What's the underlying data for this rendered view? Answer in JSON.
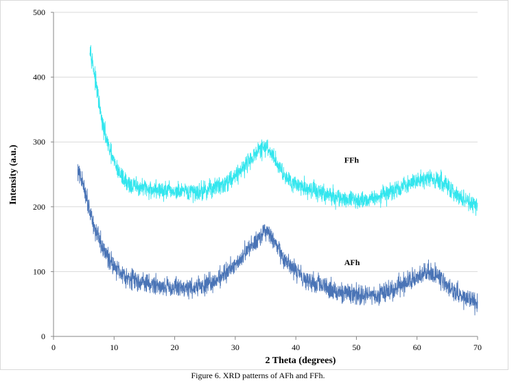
{
  "chart_data": {
    "type": "line",
    "title": "",
    "xlabel": "2 Theta (degrees)",
    "ylabel": "Intensity (a.u.)",
    "xlim": [
      0,
      70
    ],
    "ylim": [
      0,
      500
    ],
    "xticks": [
      0,
      10,
      20,
      30,
      40,
      50,
      60,
      70
    ],
    "yticks": [
      0,
      100,
      200,
      300,
      400,
      500
    ],
    "grid": "horizontal",
    "series": [
      {
        "name": "FFh",
        "color": "#33e6ee",
        "label": "FFh",
        "label_at": [
          48,
          268
        ],
        "noise": 14,
        "x_start": 6,
        "x_end": 70,
        "profile": [
          [
            6,
            450
          ],
          [
            7,
            390
          ],
          [
            8,
            330
          ],
          [
            9,
            295
          ],
          [
            10,
            268
          ],
          [
            11,
            250
          ],
          [
            12,
            238
          ],
          [
            13,
            232
          ],
          [
            15,
            228
          ],
          [
            18,
            225
          ],
          [
            20,
            223
          ],
          [
            22,
            222
          ],
          [
            25,
            225
          ],
          [
            28,
            235
          ],
          [
            30,
            248
          ],
          [
            32,
            268
          ],
          [
            34,
            288
          ],
          [
            35,
            292
          ],
          [
            36,
            282
          ],
          [
            37,
            266
          ],
          [
            38,
            250
          ],
          [
            40,
            235
          ],
          [
            42,
            228
          ],
          [
            44,
            222
          ],
          [
            46,
            216
          ],
          [
            48,
            212
          ],
          [
            50,
            210
          ],
          [
            52,
            212
          ],
          [
            55,
            220
          ],
          [
            58,
            232
          ],
          [
            60,
            240
          ],
          [
            62,
            246
          ],
          [
            64,
            238
          ],
          [
            66,
            222
          ],
          [
            68,
            208
          ],
          [
            70,
            200
          ]
        ]
      },
      {
        "name": "AFh",
        "color": "#4a74b6",
        "label": "AFh",
        "label_at": [
          48,
          110
        ],
        "noise": 15,
        "x_start": 4,
        "x_end": 70,
        "profile": [
          [
            4,
            255
          ],
          [
            5,
            232
          ],
          [
            6,
            195
          ],
          [
            7,
            160
          ],
          [
            8,
            138
          ],
          [
            9,
            122
          ],
          [
            10,
            110
          ],
          [
            11,
            100
          ],
          [
            12,
            93
          ],
          [
            14,
            85
          ],
          [
            16,
            80
          ],
          [
            18,
            78
          ],
          [
            20,
            76
          ],
          [
            22,
            75
          ],
          [
            24,
            76
          ],
          [
            26,
            82
          ],
          [
            28,
            95
          ],
          [
            30,
            112
          ],
          [
            32,
            132
          ],
          [
            34,
            155
          ],
          [
            35,
            162
          ],
          [
            36,
            152
          ],
          [
            37,
            135
          ],
          [
            38,
            118
          ],
          [
            40,
            100
          ],
          [
            42,
            88
          ],
          [
            44,
            78
          ],
          [
            46,
            72
          ],
          [
            48,
            68
          ],
          [
            50,
            64
          ],
          [
            52,
            63
          ],
          [
            54,
            66
          ],
          [
            56,
            72
          ],
          [
            58,
            82
          ],
          [
            60,
            92
          ],
          [
            62,
            100
          ],
          [
            63,
            98
          ],
          [
            64,
            88
          ],
          [
            66,
            70
          ],
          [
            68,
            58
          ],
          [
            70,
            48
          ]
        ]
      }
    ],
    "caption": "Figure 6. XRD patterns of AFh and FFh."
  }
}
